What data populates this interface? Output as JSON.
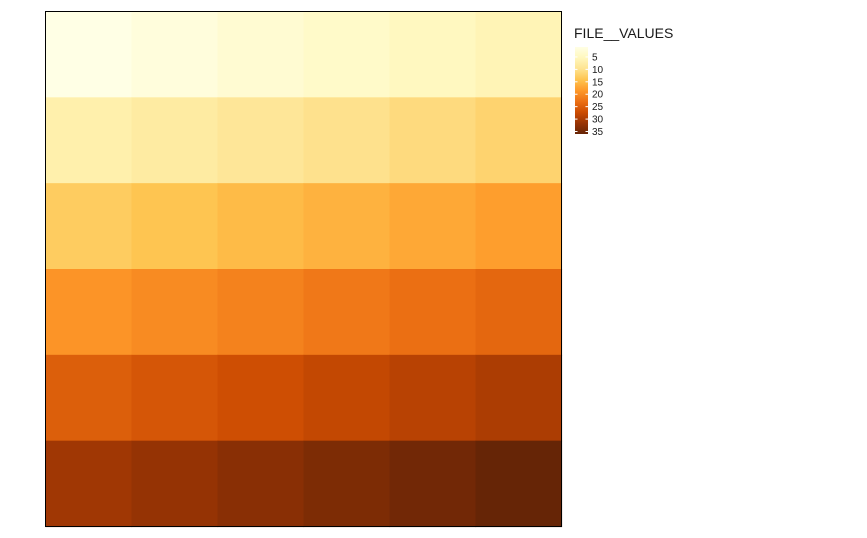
{
  "chart_data": {
    "type": "heatmap",
    "title": "",
    "xlabel": "",
    "ylabel": "",
    "rows": 6,
    "cols": 6,
    "values": [
      [
        1,
        2,
        3,
        4,
        5,
        6
      ],
      [
        7,
        8,
        9,
        10,
        11,
        12
      ],
      [
        13,
        14,
        15,
        16,
        17,
        18
      ],
      [
        19,
        20,
        21,
        22,
        23,
        24
      ],
      [
        25,
        26,
        27,
        28,
        29,
        30
      ],
      [
        31,
        32,
        33,
        34,
        35,
        36
      ]
    ],
    "legend": {
      "title": "FILE__VALUES",
      "ticks": [
        5,
        10,
        15,
        20,
        25,
        30,
        35
      ],
      "tick_labels": [
        "5",
        "10",
        "15",
        "20",
        "25",
        "30",
        "35"
      ],
      "range": [
        1,
        36
      ],
      "placement": "right"
    },
    "colormap": [
      "#FFFFE5",
      "#FFF7BC",
      "#FEE391",
      "#FEC44F",
      "#FE9929",
      "#EC7014",
      "#CC4C02",
      "#993404",
      "#662506"
    ],
    "grid": false,
    "panel_border": true
  }
}
